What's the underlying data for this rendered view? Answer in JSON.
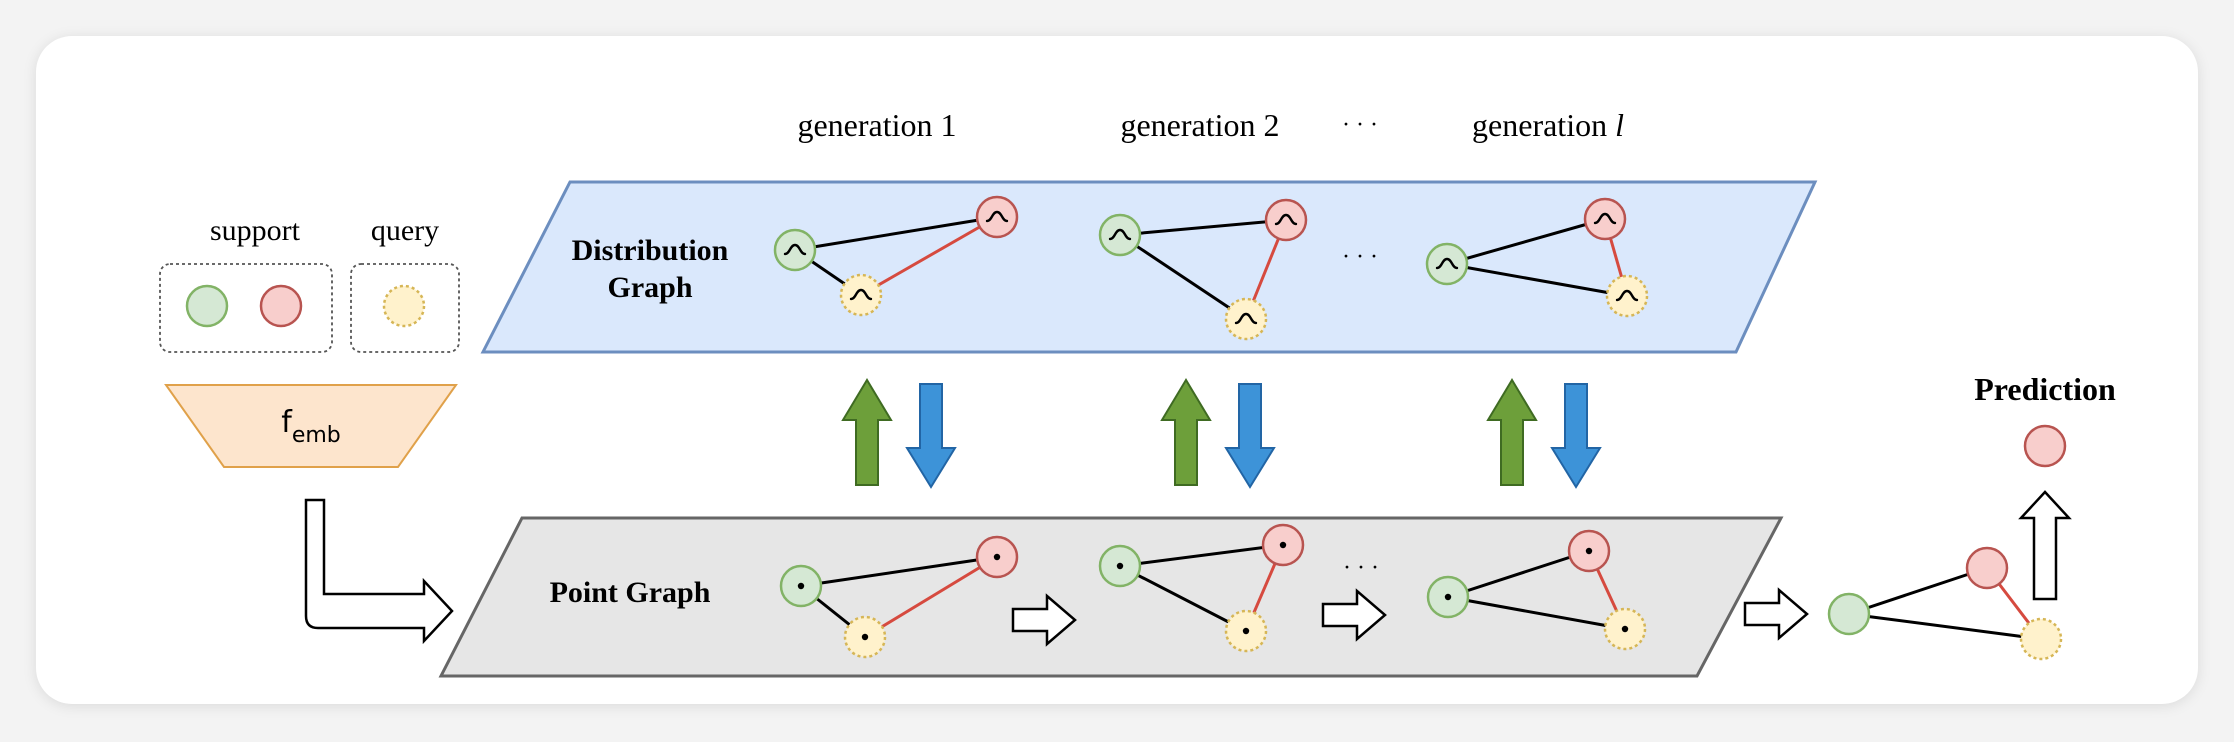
{
  "generations": [
    "generation 1",
    "generation 2",
    "generation "
  ],
  "generation_var": "l",
  "ellipsis": "· · ·",
  "legend": {
    "support_label": "support",
    "query_label": "query"
  },
  "embedding": {
    "main": "f",
    "sub": "emb"
  },
  "distribution_graph": {
    "line1": "Distribution",
    "line2": "Graph"
  },
  "point_graph": {
    "label": "Point Graph"
  },
  "prediction": {
    "label": "Prediction"
  },
  "colors": {
    "support_green_fill": "#d5e8d4",
    "support_green_stroke": "#82b366",
    "support_red_fill": "#f8cecc",
    "support_red_stroke": "#b85450",
    "query_fill": "#fff2cc",
    "query_stroke": "#d6b656",
    "dist_plane": "#dae8fc",
    "dist_plane_stroke": "#6c8ebf",
    "point_plane": "#e6e6e6",
    "point_plane_stroke": "#666666",
    "embed_fill": "#fde5cd",
    "embed_stroke": "#e0a14a",
    "arrow_up_fill": "#6d9f3a",
    "arrow_down_fill": "#3d93d8",
    "red_edge": "#d64a3f"
  }
}
